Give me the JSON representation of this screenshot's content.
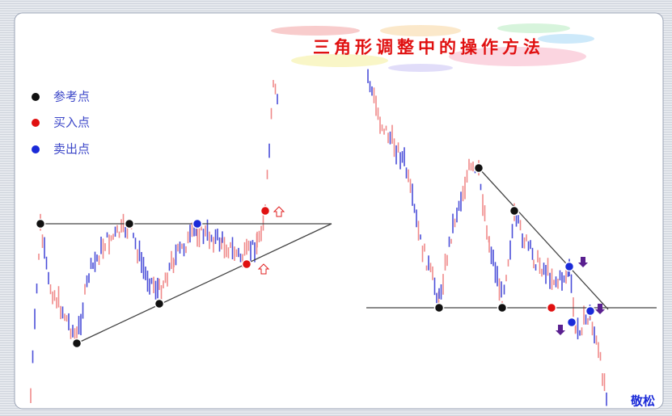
{
  "title": "三角形调整中的操作方法",
  "legend": [
    "参考点",
    "买入点",
    "卖出点"
  ],
  "signature": "敬松"
}
